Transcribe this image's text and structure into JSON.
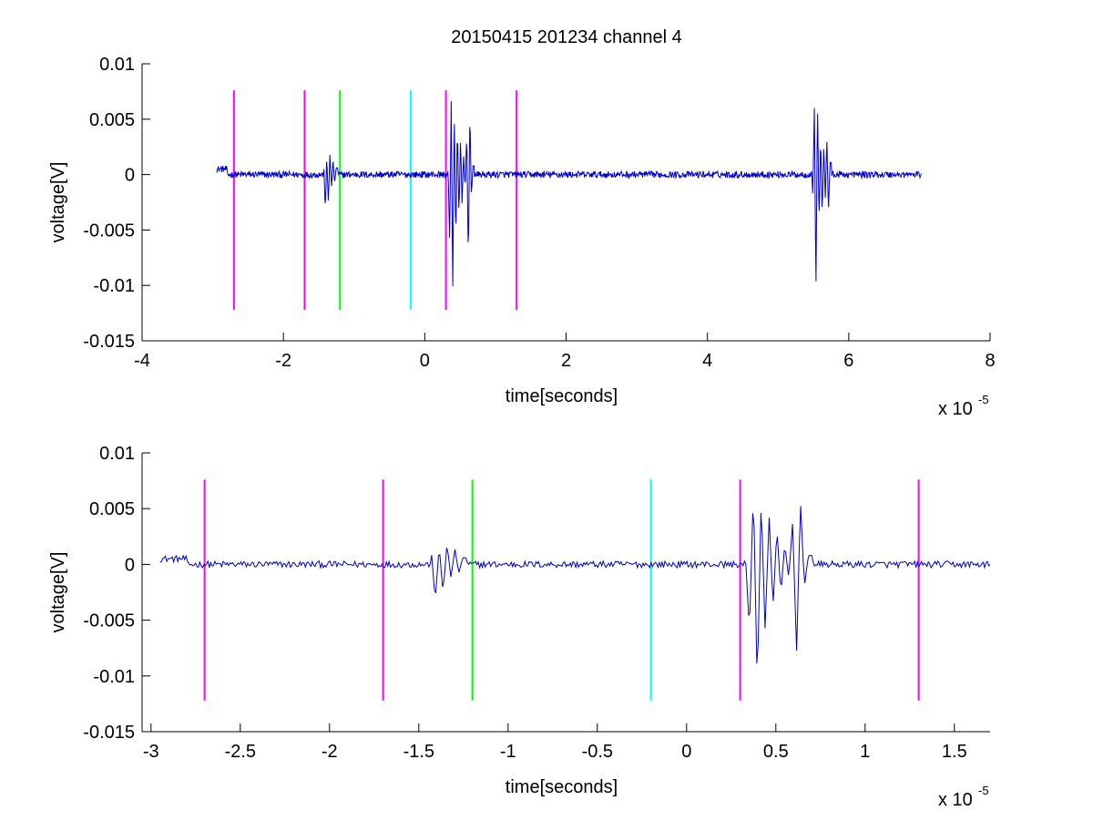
{
  "figure_title": "20150415 201234 channel 4",
  "chart_data": [
    {
      "type": "line",
      "title": "20150415 201234 channel 4",
      "xlabel": "time[seconds]",
      "ylabel": "voltage[V]",
      "x_multiplier_label": "x 10",
      "x_multiplier_exp": "-5",
      "xlim": [
        -4,
        8
      ],
      "ylim": [
        -0.015,
        0.01
      ],
      "xticks": [
        "-4",
        "-2",
        "0",
        "2",
        "4",
        "6",
        "8"
      ],
      "xtick_values": [
        -4,
        -2,
        0,
        2,
        4,
        6,
        8
      ],
      "yticks": [
        "0.01",
        "0.005",
        "0",
        "-0.005",
        "-0.01",
        "-0.015"
      ],
      "ytick_values": [
        0.01,
        0.005,
        0,
        -0.005,
        -0.01,
        -0.015
      ],
      "grid": false,
      "markers": [
        {
          "x": -2.7,
          "color": "#ff00ff"
        },
        {
          "x": -1.7,
          "color": "#ff00ff"
        },
        {
          "x": -1.2,
          "color": "#00ff00"
        },
        {
          "x": -0.2,
          "color": "#00ffff"
        },
        {
          "x": 0.3,
          "color": "#ff00ff"
        },
        {
          "x": 1.3,
          "color": "#ff00ff"
        }
      ],
      "marker_yrange": [
        -0.0122,
        0.0076
      ],
      "series": [
        {
          "color": "#0000cc",
          "x_range": [
            -2.95,
            7.03
          ],
          "noise_amplitude": 0.0003,
          "bursts": [
            {
              "x": -1.43,
              "values": [
                0.0012,
                -0.0032,
                0.0016,
                -0.0025,
                0.0018,
                -0.0012,
                0.0014,
                -0.0008,
                0.0006
              ]
            },
            {
              "x": 0.33,
              "values": [
                0.0006,
                -0.006,
                0.0067,
                -0.011,
                0.0058,
                -0.006,
                0.0044,
                -0.0038,
                0.0032,
                -0.0026,
                0.0018,
                -0.0012,
                0.0038,
                -0.0079,
                0.0057,
                -0.002,
                0.0008
              ]
            },
            {
              "x": 5.47,
              "values": [
                0.0008,
                -0.0018,
                0.0061,
                -0.0106,
                0.0067,
                -0.0045,
                0.0034,
                -0.0036,
                0.0026,
                -0.0021,
                0.0033,
                -0.0034,
                0.0011
              ]
            }
          ]
        }
      ]
    },
    {
      "type": "line",
      "title": "",
      "xlabel": "time[seconds]",
      "ylabel": "voltage[V]",
      "x_multiplier_label": "x 10",
      "x_multiplier_exp": "-5",
      "xlim": [
        -3.05,
        1.7
      ],
      "ylim": [
        -0.015,
        0.01
      ],
      "xticks": [
        "-3",
        "-2.5",
        "-2",
        "-1.5",
        "-1",
        "-0.5",
        "0",
        "0.5",
        "1",
        "1.5"
      ],
      "xtick_values": [
        -3,
        -2.5,
        -2,
        -1.5,
        -1,
        -0.5,
        0,
        0.5,
        1,
        1.5
      ],
      "yticks": [
        "0.01",
        "0.005",
        "0",
        "-0.005",
        "-0.01",
        "-0.015"
      ],
      "ytick_values": [
        0.01,
        0.005,
        0,
        -0.005,
        -0.01,
        -0.015
      ],
      "grid": false,
      "markers": [
        {
          "x": -2.7,
          "color": "#ff00ff"
        },
        {
          "x": -1.7,
          "color": "#ff00ff"
        },
        {
          "x": -1.2,
          "color": "#00ff00"
        },
        {
          "x": -0.2,
          "color": "#00ffff"
        },
        {
          "x": 0.3,
          "color": "#ff00ff"
        },
        {
          "x": 1.3,
          "color": "#ff00ff"
        }
      ],
      "marker_yrange": [
        -0.0122,
        0.0076
      ],
      "series": [
        {
          "color": "#0000cc",
          "x_range": [
            -2.95,
            1.7
          ],
          "noise_amplitude": 0.0003,
          "bursts": [
            {
              "x": -1.43,
              "values": [
                0.0012,
                -0.0032,
                0.0016,
                -0.0025,
                0.0018,
                -0.0012,
                0.0014,
                -0.0008,
                0.0006
              ]
            },
            {
              "x": 0.33,
              "values": [
                0.0006,
                -0.006,
                0.0067,
                -0.011,
                0.0058,
                -0.006,
                0.0044,
                -0.0038,
                0.0032,
                -0.0026,
                0.0018,
                -0.0012,
                0.0038,
                -0.0079,
                0.0057,
                -0.002,
                0.0008
              ]
            }
          ]
        }
      ]
    }
  ]
}
